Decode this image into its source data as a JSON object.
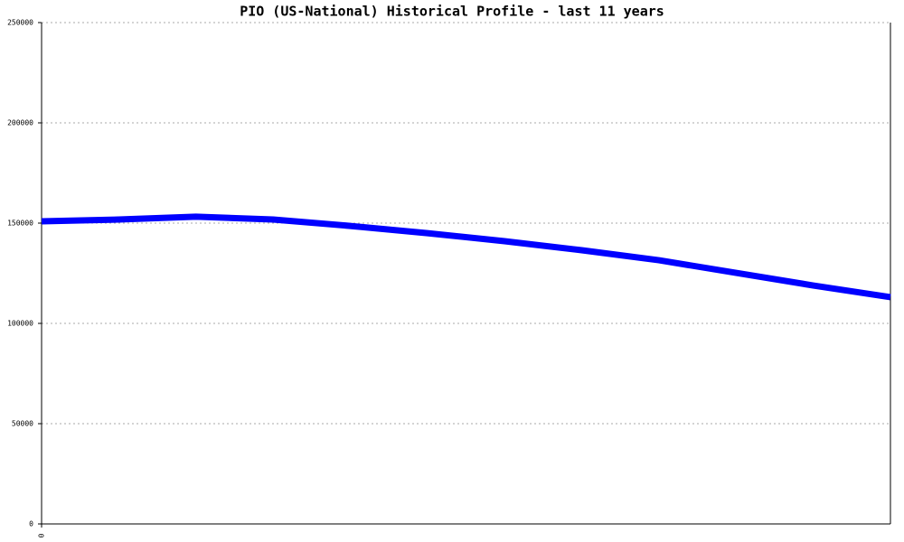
{
  "chart_data": {
    "type": "line",
    "title": "PIO (US-National) Historical Profile - last 11 years",
    "x": [
      0,
      1,
      2,
      3,
      4,
      5,
      6,
      7,
      8,
      9,
      10,
      11
    ],
    "series": [
      {
        "name": "PIO",
        "color": "#0000ff",
        "values": [
          150900,
          151800,
          153200,
          151800,
          148600,
          145000,
          141000,
          136500,
          131500,
          125200,
          118900,
          113100
        ]
      }
    ],
    "xlim": [
      0,
      11
    ],
    "xticks": [
      0
    ],
    "ylim": [
      0,
      250000
    ],
    "yticks": [
      0,
      50000,
      100000,
      150000,
      200000,
      250000
    ],
    "grid": true
  }
}
